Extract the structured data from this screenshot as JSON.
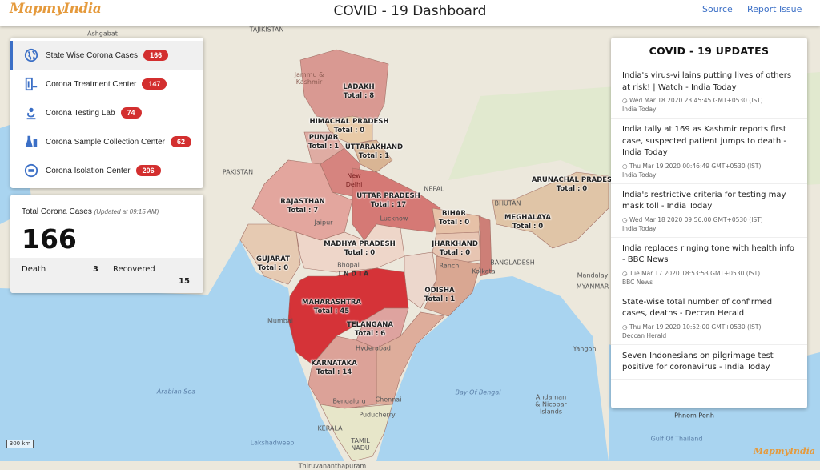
{
  "header": {
    "logo": "MapmyIndia",
    "title": "COVID - 19 Dashboard",
    "links": [
      "Source",
      "Report Issue"
    ]
  },
  "menu": {
    "items": [
      {
        "label": "State Wise Corona Cases",
        "count": "166",
        "icon": "globe-icon",
        "active": true
      },
      {
        "label": "Corona Treatment Center",
        "count": "147",
        "icon": "hospital-icon"
      },
      {
        "label": "Corona Testing Lab",
        "count": "74",
        "icon": "microscope-icon"
      },
      {
        "label": "Corona Sample Collection Center",
        "count": "62",
        "icon": "flask-icon"
      },
      {
        "label": "Corona Isolation Center",
        "count": "206",
        "icon": "bed-icon"
      }
    ]
  },
  "stats": {
    "title": "Total Corona Cases",
    "updated": "(Updated at 09:15 AM)",
    "total": "166",
    "death_label": "Death",
    "death": "3",
    "recovered_label": "Recovered",
    "recovered": "15"
  },
  "news": {
    "heading": "COVID - 19 UPDATES",
    "items": [
      {
        "title": "India's virus-villains putting lives of others at risk! | Watch - India Today",
        "date": "Wed Mar 18 2020 23:45:45 GMT+0530 (IST)",
        "source": "India Today"
      },
      {
        "title": "India tally at 169 as Kashmir reports first case, suspected patient jumps to death - India Today",
        "date": "Thu Mar 19 2020 00:46:49 GMT+0530 (IST)",
        "source": "India Today"
      },
      {
        "title": "India's restrictive criteria for testing may mask toll - India Today",
        "date": "Wed Mar 18 2020 09:56:00 GMT+0530 (IST)",
        "source": "India Today"
      },
      {
        "title": "India replaces ringing tone with health info - BBC News",
        "date": "Tue Mar 17 2020 18:53:53 GMT+0530 (IST)",
        "source": "BBC News"
      },
      {
        "title": "State-wise total number of confirmed cases, deaths - Deccan Herald",
        "date": "Thu Mar 19 2020 10:52:00 GMT+0530 (IST)",
        "source": "Deccan Herald"
      },
      {
        "title": "Seven Indonesians on pilgrimage test positive for coronavirus - India Today"
      }
    ]
  },
  "map": {
    "states": [
      {
        "name": "LADAKH",
        "total": "Total : 8"
      },
      {
        "name": "HIMACHAL PRADESH",
        "total": "Total : 0"
      },
      {
        "name": "PUNJAB",
        "total": "Total : 1"
      },
      {
        "name": "UTTARAKHAND",
        "total": "Total : 1"
      },
      {
        "name": "UTTAR PRADESH",
        "total": "Total : 17"
      },
      {
        "name": "RAJASTHAN",
        "total": "Total : 7"
      },
      {
        "name": "BIHAR",
        "total": "Total : 0"
      },
      {
        "name": "MEGHALAYA",
        "total": "Total : 0"
      },
      {
        "name": "ARUNACHAL PRADES",
        "total": "Total : 0"
      },
      {
        "name": "MADHYA PRADESH",
        "total": "Total : 0"
      },
      {
        "name": "JHARKHAND",
        "total": "Total : 0"
      },
      {
        "name": "GUJARAT",
        "total": "Total : 0"
      },
      {
        "name": "MAHARASHTRA",
        "total": "Total : 45"
      },
      {
        "name": "ODISHA",
        "total": "Total : 1"
      },
      {
        "name": "TELANGANA",
        "total": "Total : 6"
      },
      {
        "name": "KARNATAKA",
        "total": "Total : 14"
      }
    ],
    "places": [
      "Ashgabat",
      "TAJIKISTAN",
      "PAKISTAN",
      "NEPAL",
      "BHUTAN",
      "BANGLADESH",
      "INDIA",
      "Bay Of Bengal",
      "Arabian Sea",
      "Lakshadweep",
      "Mumbai",
      "Hyderabad",
      "Chennai",
      "Bengaluru",
      "Puducherry",
      "Kolkata",
      "New Delhi",
      "Jaipur",
      "Bhopal",
      "Ranchi",
      "Yangon",
      "Phnom Penh",
      "Gulf Of Thailand",
      "MYANMAR",
      "Mandalay",
      "Andaman & Nicobar Islands",
      "Jammu & Kashmir",
      "KERALA",
      "TAMIL NADU",
      "Thiruvananthapuram",
      "Lucknow"
    ],
    "scale": "300 km",
    "highlight_color": "#d42a30"
  }
}
